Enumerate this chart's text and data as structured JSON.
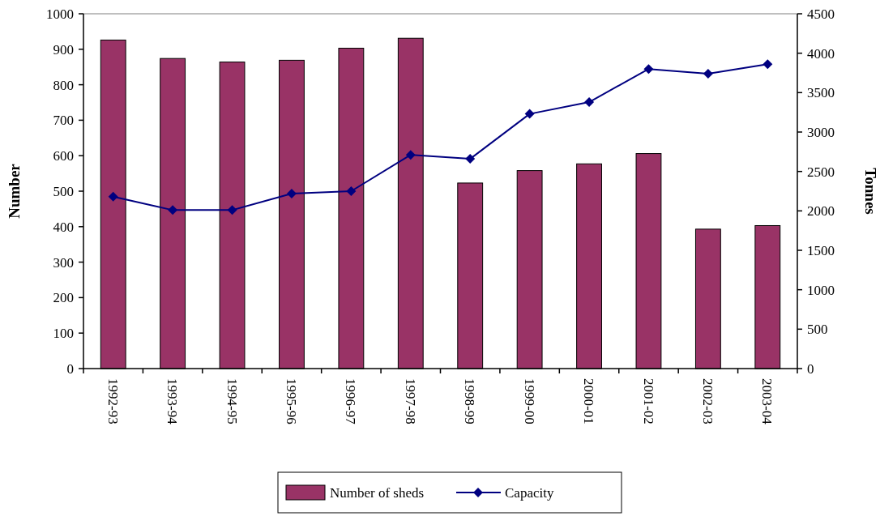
{
  "chart_data": {
    "type": "bar",
    "ylabel": "Number",
    "y2label": "Tonnes",
    "categories": [
      "1992-93",
      "1993-94",
      "1994-95",
      "1995-96",
      "1996-97",
      "1997-98",
      "1998-99",
      "1999-00",
      "2000-01",
      "2001-02",
      "2002-03",
      "2003-04"
    ],
    "series": [
      {
        "name": "Number of sheds",
        "color": "#993366",
        "values": [
          926,
          874,
          864,
          869,
          903,
          931,
          523,
          558,
          577,
          606,
          393,
          403
        ]
      },
      {
        "name": "Capacity",
        "type": "line",
        "axis": "y2",
        "color": "#000080",
        "marker": "diamond",
        "values": [
          2180,
          2010,
          2010,
          2220,
          2250,
          2710,
          2660,
          3230,
          3380,
          3800,
          3740,
          3860
        ]
      }
    ],
    "ylim": [
      0,
      1000
    ],
    "yticks": [
      0,
      100,
      200,
      300,
      400,
      500,
      600,
      700,
      800,
      900,
      1000
    ],
    "y2lim": [
      0,
      4500
    ],
    "y2ticks": [
      0,
      500,
      1000,
      1500,
      2000,
      2500,
      3000,
      3500,
      4000,
      4500
    ],
    "legend": "bottom",
    "grid": false
  }
}
